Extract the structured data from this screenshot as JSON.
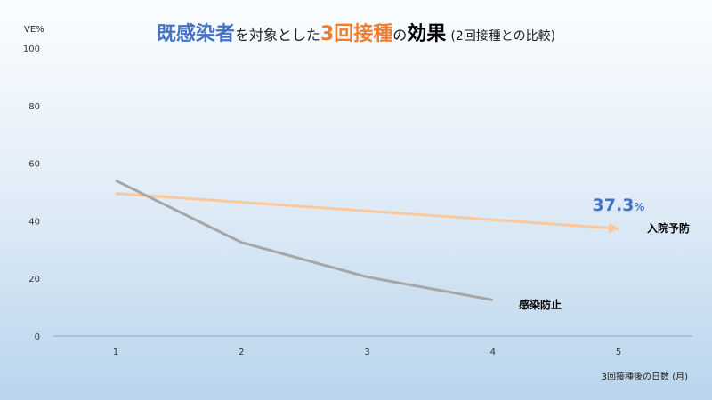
{
  "title": {
    "part1": "既感染者",
    "part2": "を対象とした",
    "part3": "3回接種",
    "part4": "の",
    "part5": "効果",
    "part6": "(2回接種との比較)",
    "color_blue": "#4472c4",
    "color_orange": "#ed7d31",
    "color_black": "#000000"
  },
  "chart_data": {
    "type": "line",
    "ylabel": "VE%",
    "xlabel": "3回接種後の日数 (月)",
    "x": [
      1,
      2,
      3,
      4,
      5
    ],
    "xticks": [
      "1",
      "2",
      "3",
      "4",
      "5"
    ],
    "ylim": [
      0,
      100
    ],
    "yticks": [
      "0",
      "20",
      "40",
      "60",
      "80",
      "100"
    ],
    "grid": false,
    "series": [
      {
        "name": "入院予防",
        "x": [
          1,
          5
        ],
        "values": [
          49.5,
          37.3
        ],
        "color": "#fcc89b",
        "end_marker": "arrow"
      },
      {
        "name": "感染防止",
        "x": [
          1,
          2,
          3,
          4
        ],
        "values": [
          54,
          32.5,
          20.5,
          12.5
        ],
        "color": "#a6a6a6"
      }
    ],
    "annotation": {
      "number": "37.3",
      "unit": "%",
      "x": 5,
      "y": 37.3,
      "color": "#4472c4"
    }
  }
}
